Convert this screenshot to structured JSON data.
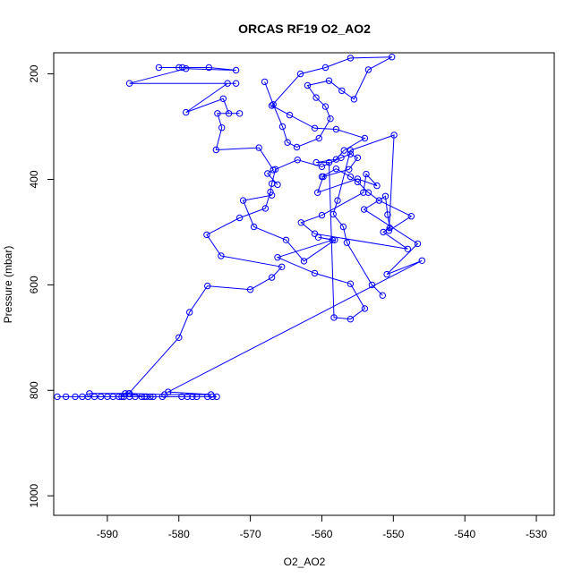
{
  "chart_data": {
    "type": "line",
    "title": "ORCAS RF19 O2_AO2",
    "xlabel": "O2_AO2",
    "ylabel": "Pressure (mbar)",
    "xlim": [
      -597.5,
      -527.5
    ],
    "ylim": [
      1037,
      160
    ],
    "y_reversed": true,
    "grid": false,
    "legend": "none",
    "xticks": [
      -590,
      -580,
      -570,
      -560,
      -550,
      -540,
      -530
    ],
    "yticks": [
      200,
      400,
      600,
      800,
      1000
    ],
    "series_color": "#0000ff",
    "marker": "open-circle",
    "series": [
      {
        "points": [
          [
            -592.5,
            806
          ],
          [
            -586.9,
            806
          ],
          [
            -582.0,
            808
          ],
          [
            -575.5,
            808
          ],
          [
            -581.5,
            803
          ],
          [
            -546.0,
            554
          ],
          [
            -550.9,
            580
          ],
          [
            -546.6,
            522
          ],
          [
            -554.1,
            457
          ],
          [
            -551.1,
            432
          ],
          [
            -550.8,
            467
          ],
          [
            -550.5,
            492
          ],
          [
            -551.4,
            500
          ],
          [
            -548.0,
            532
          ],
          [
            -561.0,
            503
          ],
          [
            -562.9,
            482
          ],
          [
            -560.0,
            468
          ],
          [
            -554.2,
            425
          ],
          [
            -553.8,
            390
          ],
          [
            -552.3,
            412
          ],
          [
            -555.0,
            399
          ],
          [
            -560.6,
            425
          ],
          [
            -559.8,
            395
          ],
          [
            -556.2,
            381
          ],
          [
            -555.0,
            359
          ],
          [
            -556.0,
            352
          ],
          [
            -557.3,
            359
          ],
          [
            -560.0,
            376
          ],
          [
            -563.4,
            363
          ],
          [
            -566.5,
            381
          ],
          [
            -567.0,
            408
          ],
          [
            -567.2,
            424
          ],
          [
            -567.9,
            455
          ],
          [
            -571.5,
            473
          ],
          [
            -576.1,
            505
          ],
          [
            -574.1,
            545
          ],
          [
            -565.6,
            566
          ],
          [
            -567.0,
            586
          ],
          [
            -570.0,
            609
          ],
          [
            -576.0,
            602
          ],
          [
            -578.5,
            652
          ],
          [
            -580.0,
            700
          ],
          [
            -587.0,
            806
          ]
        ]
      },
      {
        "points": [
          [
            -597.0,
            812
          ],
          [
            -595.8,
            812
          ],
          [
            -594.5,
            812
          ],
          [
            -593.5,
            812
          ],
          [
            -592.7,
            812
          ],
          [
            -591.8,
            812
          ],
          [
            -590.9,
            812
          ],
          [
            -590.0,
            812
          ],
          [
            -589.2,
            812
          ],
          [
            -588.4,
            812
          ],
          [
            -587.7,
            812
          ],
          [
            -586.9,
            812
          ],
          [
            -586.1,
            812
          ],
          [
            -585.2,
            812
          ],
          [
            -584.5,
            812
          ],
          [
            -583.6,
            812
          ],
          [
            -582.3,
            812
          ],
          [
            -579.6,
            812
          ],
          [
            -578.8,
            812
          ],
          [
            -578.1,
            812
          ],
          [
            -577.5,
            812
          ],
          [
            -576.0,
            812
          ],
          [
            -575.3,
            812
          ],
          [
            -574.7,
            812
          ]
        ]
      },
      {
        "points": [
          [
            -582.8,
            188
          ],
          [
            -580.0,
            188
          ],
          [
            -579.5,
            188
          ],
          [
            -575.8,
            188
          ],
          [
            -572.0,
            193
          ],
          [
            -579.0,
            190
          ],
          [
            -586.9,
            218
          ],
          [
            -572.0,
            218
          ],
          [
            -573.2,
            218
          ],
          [
            -579.0,
            273
          ],
          [
            -573.8,
            247
          ],
          [
            -573.0,
            275
          ],
          [
            -571.5,
            275
          ],
          [
            -574.6,
            275
          ],
          [
            -574.0,
            302
          ],
          [
            -574.8,
            344
          ],
          [
            -568.8,
            340
          ],
          [
            -566.8,
            382
          ],
          [
            -567.6,
            389
          ],
          [
            -566.2,
            410
          ]
        ]
      },
      {
        "points": [
          [
            -568.0,
            215
          ],
          [
            -566.8,
            258
          ],
          [
            -565.5,
            300
          ],
          [
            -564.8,
            330
          ],
          [
            -563.5,
            339
          ],
          [
            -560.4,
            322
          ],
          [
            -558.8,
            285
          ],
          [
            -559.5,
            262
          ],
          [
            -560.8,
            245
          ],
          [
            -562.0,
            222
          ],
          [
            -559.0,
            213
          ],
          [
            -557.2,
            232
          ],
          [
            -555.5,
            248
          ],
          [
            -553.5,
            192
          ],
          [
            -550.2,
            168
          ],
          [
            -556.0,
            170
          ],
          [
            -559.5,
            188
          ],
          [
            -563.0,
            200
          ],
          [
            -567.0,
            260
          ],
          [
            -564.5,
            278
          ],
          [
            -561.0,
            303
          ],
          [
            -558.0,
            305
          ],
          [
            -554.0,
            322
          ],
          [
            -556.9,
            345
          ],
          [
            -558.0,
            362
          ],
          [
            -560.8,
            368
          ],
          [
            -559.0,
            368
          ],
          [
            -558.3,
            662
          ],
          [
            -556.0,
            665
          ],
          [
            -554.0,
            645
          ],
          [
            -556.0,
            598
          ],
          [
            -561.0,
            578
          ],
          [
            -566.2,
            548
          ],
          [
            -558.5,
            515
          ],
          [
            -560.5,
            510
          ],
          [
            -558.2,
            515
          ],
          [
            -562.5,
            555
          ],
          [
            -565.0,
            515
          ],
          [
            -569.5,
            490
          ],
          [
            -571.0,
            440
          ],
          [
            -567.0,
            430
          ]
        ]
      },
      {
        "points": [
          [
            -588.0,
            812
          ],
          [
            -587.5,
            806
          ],
          [
            -584.8,
            812
          ],
          [
            -584.0,
            812
          ]
        ]
      },
      {
        "points": [
          [
            -560.0,
            395
          ],
          [
            -558.0,
            380
          ],
          [
            -556.0,
            395
          ],
          [
            -555.0,
            405
          ],
          [
            -553.5,
            425
          ],
          [
            -552.0,
            440
          ],
          [
            -547.5,
            470
          ],
          [
            -550.6,
            497
          ],
          [
            -549.9,
            316
          ],
          [
            -556.0,
            345
          ],
          [
            -557.8,
            440
          ],
          [
            -558.4,
            466
          ],
          [
            -557.0,
            490
          ],
          [
            -556.5,
            520
          ],
          [
            -553.0,
            600
          ],
          [
            -551.5,
            620
          ]
        ]
      }
    ]
  }
}
